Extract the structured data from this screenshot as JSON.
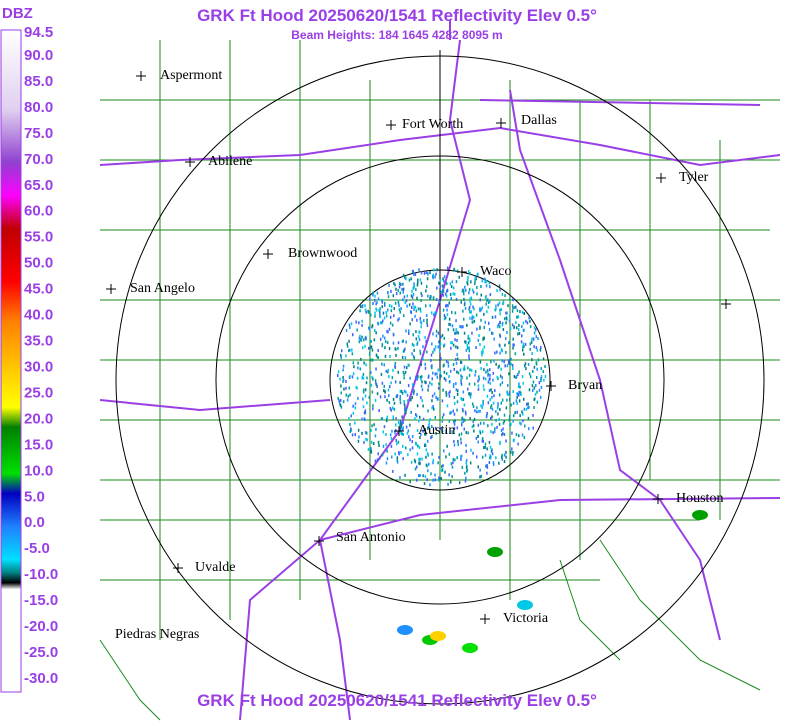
{
  "header": {
    "title": "GRK Ft Hood 20250620/1541 Reflectivity Elev 0.5°",
    "subtitle": "Beam Heights: 184 1645 4282 8095 m"
  },
  "legend": {
    "unit": "DBZ",
    "labels": [
      "94.5",
      "90.0",
      "85.0",
      "80.0",
      "75.0",
      "70.0",
      "65.0",
      "60.0",
      "55.0",
      "50.0",
      "45.0",
      "40.0",
      "35.0",
      "30.0",
      "25.0",
      "20.0",
      "15.0",
      "10.0",
      "5.0",
      "0.0",
      "-5.0",
      "-10.0",
      "-15.0",
      "-20.0",
      "-25.0",
      "-30.0"
    ]
  },
  "cities": [
    "Aspermont",
    "Fort Worth",
    "Dallas",
    "Abilene",
    "Tyler",
    "Brownwood",
    "Waco",
    "San Angelo",
    "Bryan",
    "Austin",
    "Houston",
    "San Antonio",
    "Uvalde",
    "Victoria",
    "Piedras Negras"
  ],
  "footer": {
    "title": "GRK Ft Hood 20250620/1541 Reflectivity Elev 0.5°"
  }
}
